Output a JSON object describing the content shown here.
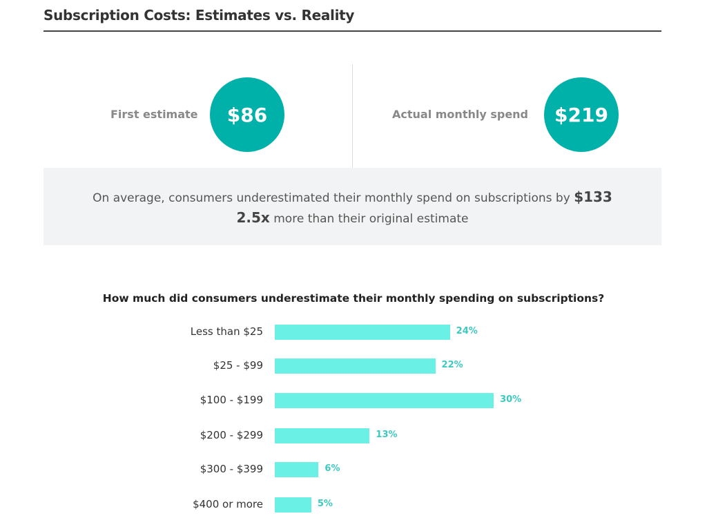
{
  "header": {
    "title": "Subscription Costs: Estimates vs. Reality"
  },
  "stats": [
    {
      "label": "First estimate",
      "value": "$86"
    },
    {
      "label": "Actual monthly spend",
      "value": "$219"
    }
  ],
  "summary": {
    "line1_text": "On average, consumers underestimated their monthly spend on subscriptions by",
    "line1_value": "$133",
    "line2_value": "2.5x",
    "line2_text": "more than their original estimate"
  },
  "colors": {
    "circle": "#00b1aa",
    "bar": "#6af0e5",
    "value_label": "#3cc9c0",
    "summary_bg": "#f2f3f4"
  },
  "chart_data": {
    "type": "bar",
    "orientation": "horizontal",
    "title": "How much did consumers underestimate their monthly spending on subscriptions?",
    "categories": [
      "Less than $25",
      "$25 - $99",
      "$100 - $199",
      "$200 - $299",
      "$300 - $399",
      "$400 or more"
    ],
    "values": [
      24,
      22,
      30,
      13,
      6,
      5
    ],
    "value_labels": [
      "24%",
      "22%",
      "30%",
      "13%",
      "6%",
      "5%"
    ],
    "unit": "%",
    "grid": false
  }
}
